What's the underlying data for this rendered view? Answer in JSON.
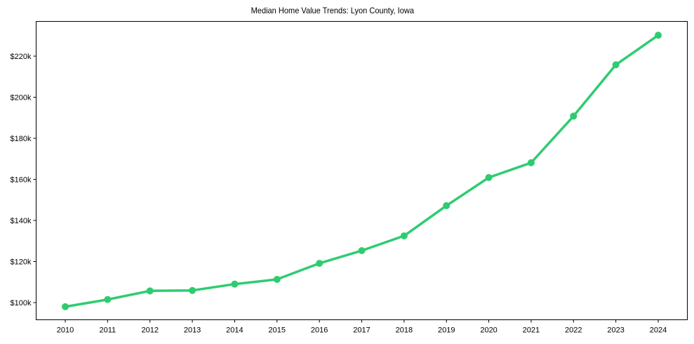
{
  "title": "Median Home Value Trends: Lyon County, Iowa",
  "colors": {
    "line": "#2ecc71",
    "axis": "#000000",
    "background": "#ffffff"
  },
  "chart_data": {
    "type": "line",
    "title": "Median Home Value Trends: Lyon County, Iowa",
    "xlabel": "",
    "ylabel": "",
    "categories": [
      "2010",
      "2011",
      "2012",
      "2013",
      "2014",
      "2015",
      "2016",
      "2017",
      "2018",
      "2019",
      "2020",
      "2021",
      "2022",
      "2023",
      "2024"
    ],
    "series": [
      {
        "name": "Median Home Value",
        "color": "#2ecc71",
        "marker": "circle",
        "values": [
          98000,
          101500,
          105700,
          105900,
          109000,
          111300,
          119100,
          125300,
          132500,
          147200,
          160900,
          168100,
          190800,
          215800,
          230200
        ]
      }
    ],
    "yticks": [
      100000,
      120000,
      140000,
      160000,
      180000,
      200000,
      220000
    ],
    "ytick_labels": [
      "$100k",
      "$120k",
      "$140k",
      "$160k",
      "$180k",
      "$200k",
      "$220k"
    ],
    "ylim": [
      91500,
      236700
    ],
    "grid": false,
    "legend": null
  }
}
